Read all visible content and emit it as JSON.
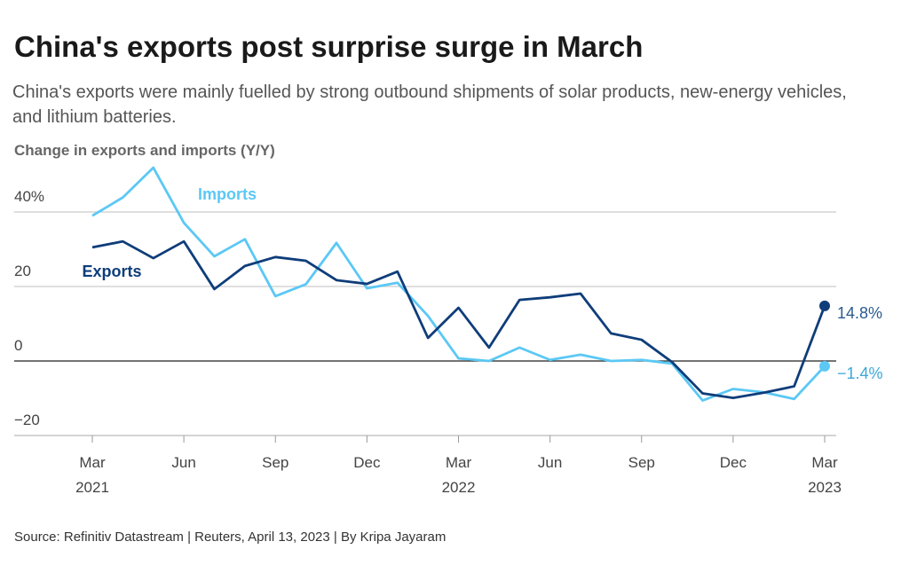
{
  "chart_data": {
    "type": "line",
    "title": "China's exports post surprise surge in March",
    "subtitle": "China's exports were mainly fuelled by strong outbound shipments of solar products, new-energy vehicles, and lithium batteries.",
    "y_axis_label": "Change in exports and imports (Y/Y)",
    "source": "Source: Refinitiv Datastream | Reuters, April 13, 2023 | By Kripa Jayaram",
    "categories": [
      "Mar 2021",
      null,
      null,
      "Jun",
      null,
      null,
      "Sep",
      null,
      null,
      "Dec",
      null,
      null,
      "Mar 2022",
      null,
      null,
      "Jun",
      null,
      null,
      "Sep",
      null,
      null,
      "Dec",
      null,
      null,
      "Mar 2023"
    ],
    "series": [
      {
        "name": "Imports",
        "color": "#5bc8f5",
        "values": [
          39.0,
          43.9,
          51.9,
          37.1,
          28.1,
          32.7,
          17.4,
          20.6,
          31.7,
          19.5,
          21.0,
          12.1,
          0.7,
          0.0,
          3.6,
          0.3,
          1.7,
          0.0,
          0.3,
          -0.7,
          -10.6,
          -7.5,
          -8.4,
          -10.2,
          -1.4
        ],
        "value_labels": [
          null,
          null,
          null,
          null,
          null,
          null,
          null,
          null,
          null,
          null,
          null,
          null,
          null,
          null,
          null,
          null,
          null,
          null,
          null,
          null,
          null,
          null,
          null,
          null,
          "−1.4%"
        ]
      },
      {
        "name": "Exports",
        "color": "#0f3d7a",
        "values": [
          30.5,
          32.1,
          27.6,
          32.1,
          19.3,
          25.5,
          27.9,
          26.9,
          21.7,
          20.7,
          24.0,
          6.2,
          14.3,
          3.6,
          16.4,
          17.1,
          18.1,
          7.4,
          5.7,
          -0.3,
          -8.7,
          -9.9,
          -8.5,
          -6.8,
          14.8
        ],
        "value_labels": [
          null,
          null,
          null,
          null,
          null,
          null,
          null,
          null,
          null,
          null,
          null,
          null,
          null,
          null,
          null,
          null,
          null,
          null,
          null,
          null,
          null,
          null,
          null,
          null,
          "14.8%"
        ]
      }
    ],
    "ylim": [
      -20,
      52
    ],
    "yticks": [
      {
        "value": -20,
        "label": "−20"
      },
      0,
      20,
      {
        "value": 40,
        "label": "40%"
      }
    ],
    "grid": true
  }
}
